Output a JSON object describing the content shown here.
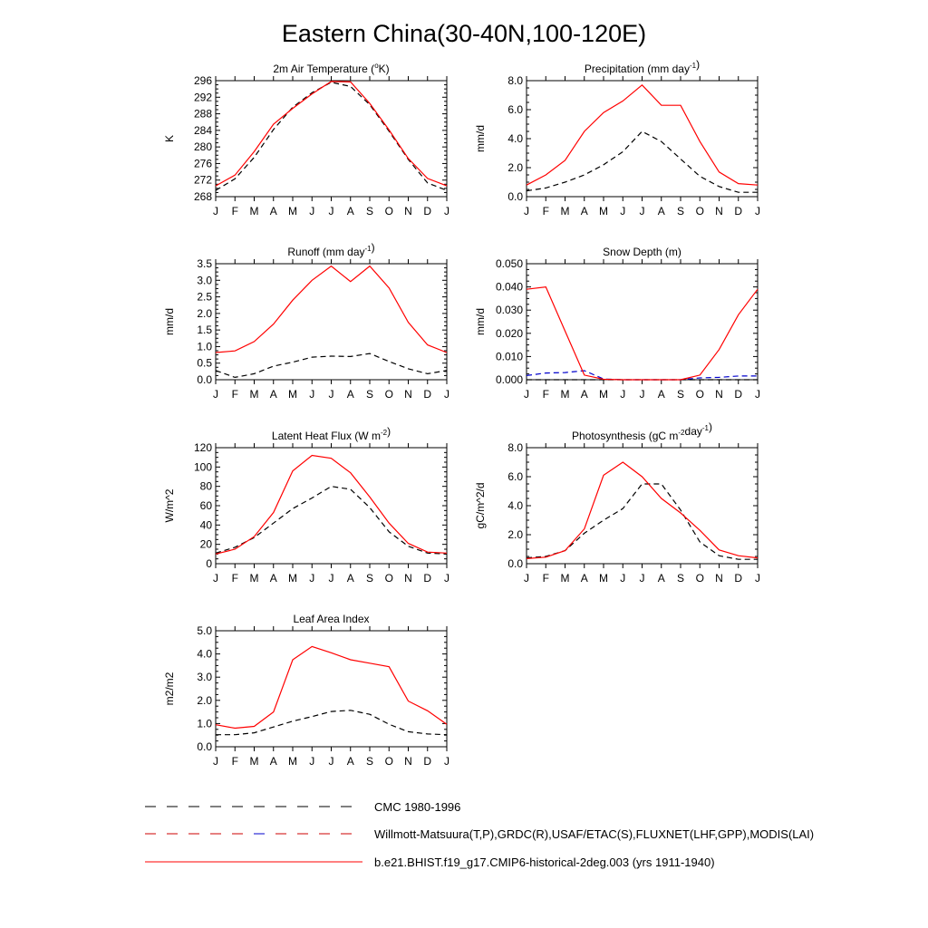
{
  "page_title": "Eastern China(30-40N,100-120E)",
  "months": [
    "J",
    "F",
    "M",
    "A",
    "M",
    "J",
    "J",
    "A",
    "S",
    "O",
    "N",
    "D",
    "J"
  ],
  "legend": [
    {
      "label": "CMC 1980-1996",
      "color": "#000000",
      "dash": "dashed"
    },
    {
      "label": "Willmott-Matsuura(T,P),GRDC(R),USAF/ETAC(S),FLUXNET(LHF,GPP),MODIS(LAI)",
      "color": "#cc0000",
      "color2": "#0000cc",
      "dash": "dashed"
    },
    {
      "label": "b.e21.BHIST.f19_g17.CMIP6-historical-2deg.003 (yrs 1911-1940)",
      "color": "#ff0000",
      "dash": "solid"
    }
  ],
  "chart_data": [
    {
      "type": "line",
      "title": "2m Air Temperature (°K)",
      "ylabel": "K",
      "ylim": [
        268,
        296
      ],
      "yticks": [
        268,
        272,
        276,
        280,
        284,
        288,
        292,
        296
      ],
      "yticklabels": [
        "268",
        "272",
        "276",
        "280",
        "284",
        "288",
        "292",
        "296"
      ],
      "x": [
        "J",
        "F",
        "M",
        "A",
        "M",
        "J",
        "J",
        "A",
        "S",
        "O",
        "N",
        "D",
        "J"
      ],
      "series": [
        {
          "style": "model",
          "values": [
            270.6,
            273.2,
            278.9,
            285.5,
            289.3,
            292.8,
            295.8,
            295.7,
            290.5,
            284.1,
            277.2,
            272.4,
            270.6
          ]
        },
        {
          "style": "obs-dashed",
          "values": [
            269.5,
            272.3,
            277.5,
            284.2,
            289.6,
            293.1,
            295.6,
            294.6,
            290.2,
            283.8,
            277.0,
            271.3,
            269.5
          ]
        }
      ]
    },
    {
      "type": "line",
      "title": "Precipitation (mm day-1)",
      "ylabel": "mm/d",
      "ylim": [
        0,
        8
      ],
      "yticks": [
        0,
        2,
        4,
        6,
        8
      ],
      "yticklabels": [
        "0.0",
        "2.0",
        "4.0",
        "6.0",
        "8.0"
      ],
      "x": [
        "J",
        "F",
        "M",
        "A",
        "M",
        "J",
        "J",
        "A",
        "S",
        "O",
        "N",
        "D",
        "J"
      ],
      "series": [
        {
          "style": "model",
          "values": [
            0.8,
            1.5,
            2.5,
            4.5,
            5.8,
            6.6,
            7.7,
            6.3,
            6.3,
            3.8,
            1.7,
            0.9,
            0.8
          ]
        },
        {
          "style": "obs-dashed",
          "values": [
            0.4,
            0.6,
            1.0,
            1.5,
            2.2,
            3.1,
            4.5,
            3.8,
            2.6,
            1.4,
            0.7,
            0.3,
            0.3
          ]
        }
      ]
    },
    {
      "type": "line",
      "title": "Runoff (mm day-1)",
      "ylabel": "mm/d",
      "ylim": [
        0,
        3.5
      ],
      "yticks": [
        0,
        0.5,
        1.0,
        1.5,
        2.0,
        2.5,
        3.0,
        3.5
      ],
      "yticklabels": [
        "0.0",
        "0.5",
        "1.0",
        "1.5",
        "2.0",
        "2.5",
        "3.0",
        "3.5"
      ],
      "x": [
        "J",
        "F",
        "M",
        "A",
        "M",
        "J",
        "J",
        "A",
        "S",
        "O",
        "N",
        "D",
        "J"
      ],
      "series": [
        {
          "style": "model",
          "values": [
            0.82,
            0.87,
            1.15,
            1.68,
            2.4,
            3.0,
            3.43,
            2.96,
            3.43,
            2.77,
            1.73,
            1.05,
            0.82
          ]
        },
        {
          "style": "obs-dashed",
          "values": [
            0.28,
            0.07,
            0.18,
            0.41,
            0.53,
            0.68,
            0.71,
            0.7,
            0.79,
            0.55,
            0.33,
            0.18,
            0.28
          ]
        }
      ]
    },
    {
      "type": "line",
      "title": "Snow Depth (m)",
      "ylabel": "mm/d",
      "ylim": [
        0,
        0.05
      ],
      "yticks": [
        0,
        0.01,
        0.02,
        0.03,
        0.04,
        0.05
      ],
      "yticklabels": [
        "0.000",
        "0.010",
        "0.020",
        "0.030",
        "0.040",
        "0.050"
      ],
      "x": [
        "J",
        "F",
        "M",
        "A",
        "M",
        "J",
        "J",
        "A",
        "S",
        "O",
        "N",
        "D",
        "J"
      ],
      "series": [
        {
          "style": "model",
          "values": [
            0.039,
            0.04,
            0.021,
            0.002,
            0.0002,
            0.0,
            0.0,
            0.0,
            0.0,
            0.002,
            0.013,
            0.028,
            0.039
          ]
        },
        {
          "style": "obs-dashed-blue",
          "values": [
            0.0018,
            0.0029,
            0.0031,
            0.0039,
            0.0003,
            0.0,
            0.0,
            0.0,
            0.0,
            0.0008,
            0.001,
            0.0016,
            0.0016
          ]
        },
        {
          "style": "obs-dashed",
          "values": [
            0.0,
            0.0,
            0.0,
            0.0,
            0.0,
            0.0,
            0.0,
            0.0,
            0.0,
            0.0,
            0.0,
            0.0,
            0.0
          ]
        }
      ]
    },
    {
      "type": "line",
      "title": "Latent Heat Flux (W m-2)",
      "ylabel": "W/m^2",
      "ylim": [
        0,
        120
      ],
      "yticks": [
        0,
        20,
        40,
        60,
        80,
        100,
        120
      ],
      "yticklabels": [
        "0",
        "20",
        "40",
        "60",
        "80",
        "100",
        "120"
      ],
      "x": [
        "J",
        "F",
        "M",
        "A",
        "M",
        "J",
        "J",
        "A",
        "S",
        "O",
        "N",
        "D",
        "J"
      ],
      "series": [
        {
          "style": "model",
          "values": [
            10,
            15,
            28,
            53,
            96,
            112,
            109,
            94,
            69,
            42,
            21,
            12,
            11
          ]
        },
        {
          "style": "obs-dashed",
          "values": [
            11,
            17,
            27,
            42,
            57,
            68,
            80,
            77,
            58,
            33,
            18,
            11,
            10
          ]
        }
      ]
    },
    {
      "type": "line",
      "title": "Photosynthesis (gC m-2day-1)",
      "ylabel": "gC/m^2/d",
      "ylim": [
        0,
        8
      ],
      "yticks": [
        0,
        2,
        4,
        6,
        8
      ],
      "yticklabels": [
        "0.0",
        "2.0",
        "4.0",
        "6.0",
        "8.0"
      ],
      "x": [
        "J",
        "F",
        "M",
        "A",
        "M",
        "J",
        "J",
        "A",
        "S",
        "O",
        "N",
        "D",
        "J"
      ],
      "series": [
        {
          "style": "model",
          "values": [
            0.35,
            0.45,
            0.9,
            2.4,
            6.1,
            7.0,
            6.0,
            4.5,
            3.5,
            2.3,
            0.95,
            0.55,
            0.4
          ]
        },
        {
          "style": "obs-dashed",
          "values": [
            0.4,
            0.5,
            0.9,
            2.1,
            3.0,
            3.8,
            5.5,
            5.5,
            3.7,
            1.5,
            0.55,
            0.3,
            0.3
          ]
        }
      ]
    },
    {
      "type": "line",
      "title": "Leaf Area Index",
      "ylabel": "m2/m2",
      "ylim": [
        0,
        5
      ],
      "yticks": [
        0,
        1,
        2,
        3,
        4,
        5
      ],
      "yticklabels": [
        "0.0",
        "1.0",
        "2.0",
        "3.0",
        "4.0",
        "5.0"
      ],
      "x": [
        "J",
        "F",
        "M",
        "A",
        "M",
        "J",
        "J",
        "A",
        "S",
        "O",
        "N",
        "D",
        "J"
      ],
      "series": [
        {
          "style": "model",
          "values": [
            0.95,
            0.8,
            0.88,
            1.5,
            3.75,
            4.32,
            4.05,
            3.75,
            3.6,
            3.45,
            1.97,
            1.55,
            0.97
          ]
        },
        {
          "style": "obs-dashed",
          "values": [
            0.52,
            0.52,
            0.6,
            0.85,
            1.1,
            1.3,
            1.52,
            1.57,
            1.4,
            0.97,
            0.65,
            0.55,
            0.52
          ]
        }
      ]
    }
  ]
}
